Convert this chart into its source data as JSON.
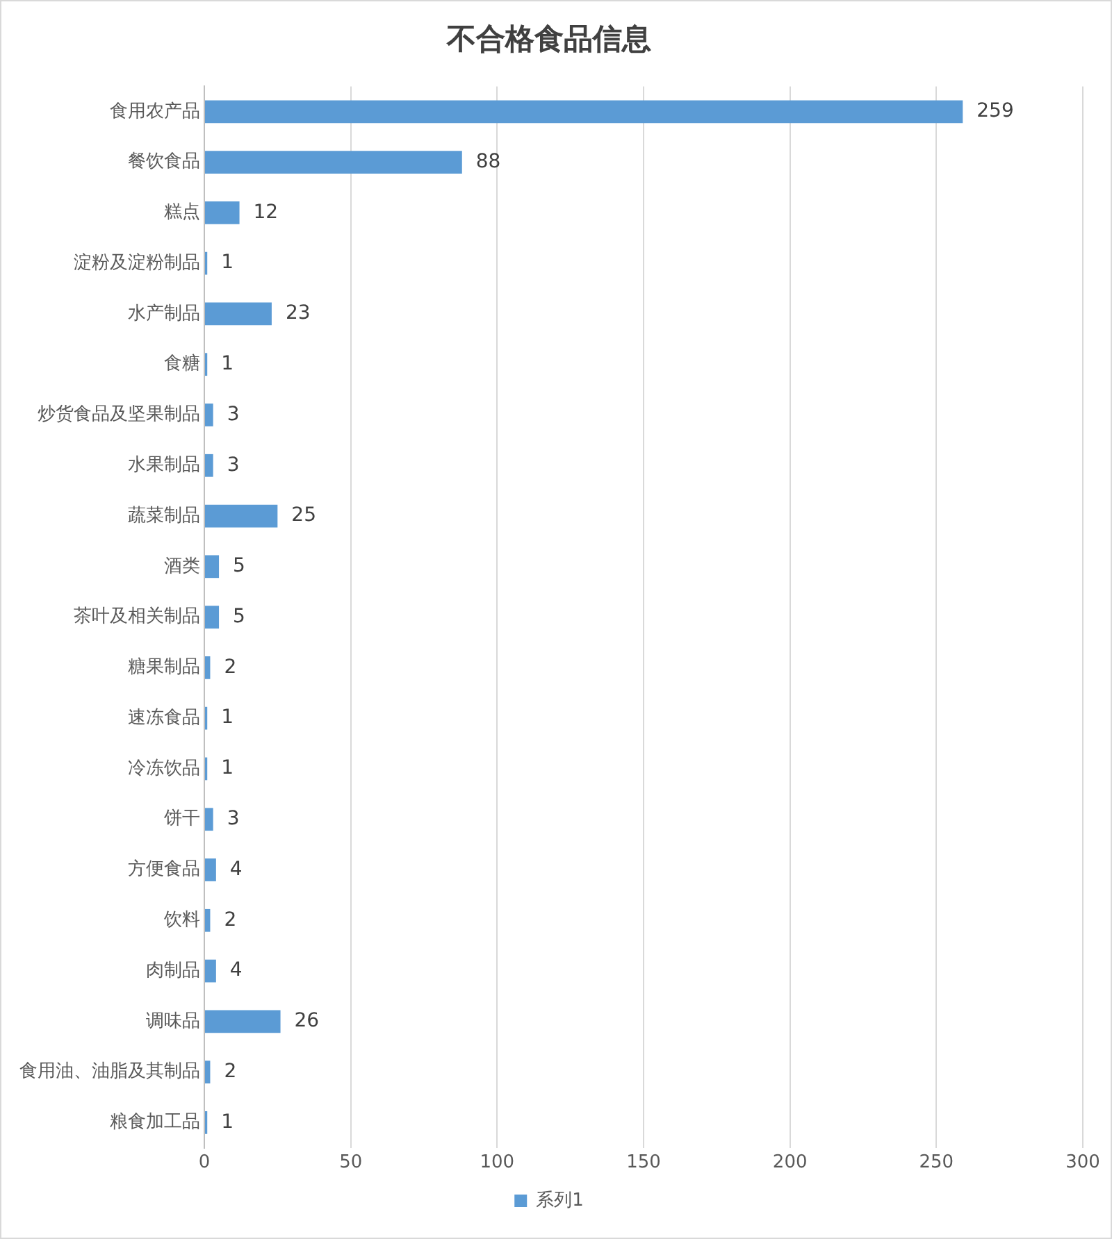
{
  "chart_data": {
    "type": "bar",
    "title": "不合格食品信息",
    "orientation": "horizontal",
    "categories": [
      "食用农产品",
      "餐饮食品",
      "糕点",
      "淀粉及淀粉制品",
      "水产制品",
      "食糖",
      "炒货食品及坚果制品",
      "水果制品",
      "蔬菜制品",
      "酒类",
      "茶叶及相关制品",
      "糖果制品",
      "速冻食品",
      "冷冻饮品",
      "饼干",
      "方便食品",
      "饮料",
      "肉制品",
      "调味品",
      "食用油、油脂及其制品",
      "粮食加工品"
    ],
    "series": [
      {
        "name": "系列1",
        "color": "#5b9bd5",
        "values": [
          259,
          88,
          12,
          1,
          23,
          1,
          3,
          3,
          25,
          5,
          5,
          2,
          1,
          1,
          3,
          4,
          2,
          4,
          26,
          2,
          1
        ]
      }
    ],
    "xlim": [
      0,
      300
    ],
    "xticks": [
      0,
      50,
      100,
      150,
      200,
      250,
      300
    ],
    "grid": "x",
    "legend": "bottom",
    "data_labels": true
  }
}
